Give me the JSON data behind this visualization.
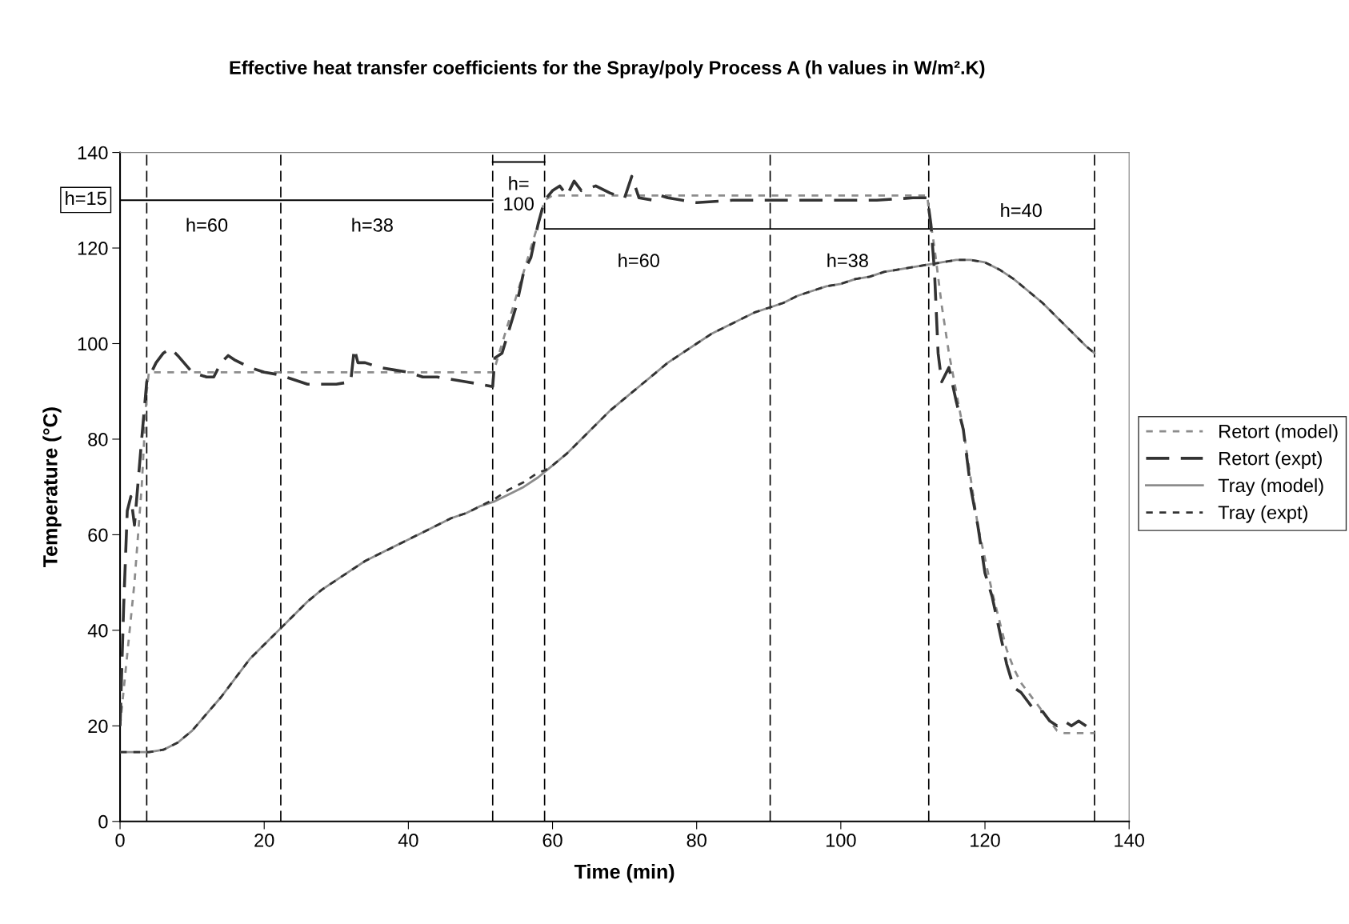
{
  "chart_data": {
    "type": "line",
    "title": "Effective heat transfer coefficients for the Spray/poly Process A (h values in W/m².K)",
    "xlabel": "Time (min)",
    "ylabel": "Temperature (°C)",
    "xlim": [
      0,
      140
    ],
    "xticks": [
      0,
      20,
      40,
      60,
      80,
      100,
      120,
      140
    ],
    "ylim": [
      0,
      140
    ],
    "yticks": [
      0,
      20,
      40,
      60,
      80,
      100,
      120,
      140
    ],
    "grid": false,
    "legend": "right",
    "marker": "none",
    "series": [
      {
        "name": "Retort (model)",
        "color": "#8c8c8c",
        "line_style": "dotted",
        "x": [
          0,
          1,
          2,
          3,
          3.7,
          4,
          20,
          40,
          51.7,
          52,
          54,
          56,
          58,
          58.9,
          60,
          80,
          100,
          112,
          112.2,
          113,
          114,
          115,
          116,
          117,
          118,
          119,
          120,
          121,
          122,
          123,
          124,
          125,
          126,
          127,
          128,
          129,
          130,
          131,
          133,
          135.2
        ],
        "values": [
          20,
          35,
          50,
          70,
          90,
          94,
          94,
          94,
          94,
          95,
          105,
          115,
          125,
          130,
          131,
          131,
          131,
          131,
          128,
          120,
          108,
          98,
          90,
          82,
          72,
          62,
          55,
          48,
          42,
          36,
          32,
          29,
          27,
          25,
          23,
          21,
          19,
          18.5,
          18.5,
          18.5
        ]
      },
      {
        "name": "Retort (expt)",
        "color": "#333333",
        "line_style": "dashed",
        "x": [
          0,
          0.5,
          1,
          1.5,
          2,
          3,
          3.7,
          5,
          6,
          7,
          8,
          10,
          12,
          13,
          14,
          15,
          16,
          18,
          20,
          22,
          24,
          26,
          30,
          32,
          32.5,
          33,
          34,
          36,
          38,
          40,
          42,
          44,
          46,
          48,
          50,
          51.7,
          52,
          53,
          54,
          55,
          56,
          57,
          58,
          58.9,
          60,
          61,
          62,
          63,
          64,
          66,
          68,
          70,
          71,
          72,
          74,
          75,
          76,
          78,
          80,
          85,
          90,
          95,
          100,
          105,
          110,
          112,
          112.5,
          113,
          113.5,
          114,
          115,
          116,
          117,
          118,
          119,
          120,
          121,
          122,
          123,
          124,
          125,
          126,
          127,
          128,
          129,
          130,
          131,
          132,
          133,
          134,
          135.2
        ],
        "values": [
          20,
          45,
          65,
          68,
          62,
          80,
          92,
          96,
          98,
          99,
          97.5,
          94,
          93,
          93,
          96,
          97.5,
          96.5,
          95,
          94,
          93.5,
          92.5,
          91.5,
          91.5,
          92,
          99,
          96,
          96,
          95,
          94.5,
          94,
          93,
          93,
          92.5,
          92,
          91.5,
          91,
          97,
          98,
          103,
          108,
          115,
          118,
          125,
          130,
          132,
          133,
          131,
          134,
          132,
          133,
          131.5,
          130.5,
          135,
          130.5,
          130,
          131,
          130.5,
          130,
          129.5,
          130,
          130,
          130,
          130,
          130,
          130.5,
          130.5,
          125,
          115,
          98,
          92,
          95,
          88,
          82,
          70,
          62,
          52,
          47,
          40,
          33,
          28,
          27,
          25,
          23,
          23,
          21,
          20,
          21,
          20,
          21,
          20,
          18.5
        ]
      },
      {
        "name": "Tray (model)",
        "color": "#8c8c8c",
        "line_style": "solid",
        "x": [
          0,
          4,
          6,
          8,
          10,
          12,
          14,
          16,
          18,
          20,
          22,
          24,
          26,
          28,
          30,
          32,
          34,
          36,
          38,
          40,
          42,
          44,
          46,
          48,
          50,
          52,
          54,
          56,
          58,
          60,
          62,
          64,
          66,
          68,
          70,
          72,
          74,
          76,
          78,
          80,
          82,
          84,
          86,
          88,
          90,
          92,
          94,
          96,
          98,
          100,
          102,
          104,
          106,
          108,
          110,
          112,
          114,
          116,
          118,
          120,
          122,
          124,
          126,
          128,
          130,
          132,
          134,
          135.2
        ],
        "values": [
          14.5,
          14.5,
          15,
          16.5,
          19,
          22.5,
          26,
          30,
          34,
          37,
          40,
          43,
          46,
          48.5,
          50.5,
          52.5,
          54.5,
          56,
          57.5,
          59,
          60.5,
          62,
          63.5,
          64.5,
          66,
          67,
          68.5,
          70,
          72,
          74.5,
          77,
          80,
          83,
          86,
          88.5,
          91,
          93.5,
          96,
          98,
          100,
          102,
          103.5,
          105,
          106.5,
          107.5,
          108.5,
          110,
          111,
          112,
          112.5,
          113.5,
          114,
          115,
          115.5,
          116,
          116.5,
          117,
          117.5,
          117.5,
          117,
          115.5,
          113.5,
          111,
          108.5,
          105.5,
          102.5,
          99.5,
          98
        ]
      },
      {
        "name": "Tray (expt)",
        "color": "#333333",
        "line_style": "dotted",
        "x": [
          0,
          4,
          6,
          8,
          10,
          12,
          14,
          16,
          18,
          20,
          22,
          24,
          26,
          28,
          30,
          32,
          34,
          36,
          38,
          40,
          42,
          44,
          46,
          48,
          50,
          52,
          54,
          56,
          58,
          59,
          60,
          62,
          64,
          66,
          68,
          70,
          72,
          74,
          76,
          78,
          80,
          82,
          84,
          86,
          88,
          90,
          92,
          94,
          96,
          98,
          100,
          102,
          104,
          106,
          108,
          110,
          112,
          114,
          116,
          118,
          120,
          122,
          124,
          126,
          128,
          130,
          132,
          134,
          135.2
        ],
        "values": [
          14.5,
          14.5,
          15,
          16.5,
          19,
          22.5,
          26,
          30,
          34,
          37,
          40,
          43,
          46,
          48.5,
          50.5,
          52.5,
          54.5,
          56,
          57.5,
          59,
          60.5,
          62,
          63.5,
          64.5,
          66,
          67.5,
          69.5,
          71,
          73,
          73.5,
          74.5,
          77,
          80,
          83,
          86,
          88.5,
          91,
          93.5,
          96,
          98,
          100,
          102,
          103.5,
          105,
          106.5,
          107.5,
          108.5,
          110,
          111,
          112,
          112.5,
          113.5,
          114,
          115,
          115.5,
          116,
          116.5,
          117,
          117.5,
          117.5,
          117,
          115.5,
          113.5,
          111,
          108.5,
          105.5,
          102.5,
          99.5,
          98
        ]
      },
      {
        "type": "line",
        "color": "#000000",
        "line_style": "solid",
        "x": [
          0,
          51.7
        ],
        "values": [
          130,
          130
        ]
      },
      {
        "type": "line",
        "color": "#000000",
        "line_style": "solid",
        "x": [
          51.7,
          58.9
        ],
        "values": [
          138,
          138
        ]
      },
      {
        "type": "line",
        "color": "#000000",
        "line_style": "solid",
        "x": [
          58.9,
          135.2
        ],
        "values": [
          124,
          124
        ]
      }
    ],
    "ref_lines": [
      {
        "axis": "x",
        "value": 3.7,
        "color": "#000000",
        "line_style": "dashed"
      },
      {
        "axis": "x",
        "value": 22.3,
        "color": "#000000",
        "line_style": "dashed"
      },
      {
        "axis": "x",
        "value": 51.7,
        "color": "#000000",
        "line_style": "dashed"
      },
      {
        "axis": "x",
        "value": 58.9,
        "color": "#000000",
        "line_style": "dashed"
      },
      {
        "axis": "x",
        "value": 90.2,
        "color": "#000000",
        "line_style": "dashed"
      },
      {
        "axis": "x",
        "value": 112.2,
        "color": "#000000",
        "line_style": "dashed"
      },
      {
        "axis": "x",
        "value": 135.2,
        "color": "#000000",
        "line_style": "dashed"
      }
    ],
    "annotations": [
      "h=15",
      "h=60",
      "h=38",
      "h=\n100",
      "h=60",
      "h=38",
      "h=40"
    ]
  }
}
